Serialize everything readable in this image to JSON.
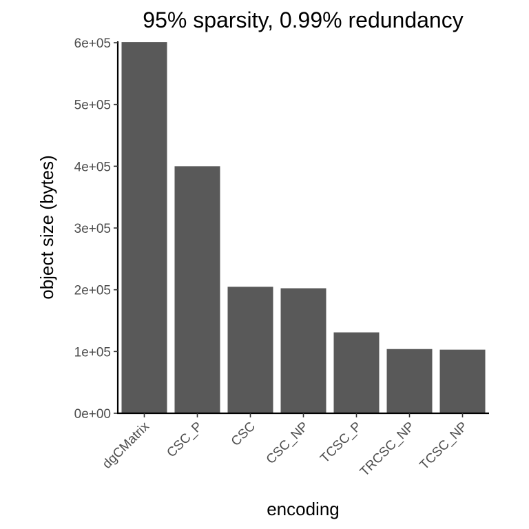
{
  "chart_data": {
    "type": "bar",
    "title": "95% sparsity, 0.99% redundancy",
    "xlabel": "encoding",
    "ylabel": "object size (bytes)",
    "categories": [
      "dgCMatrix",
      "CSC_P",
      "CSC",
      "CSC_NP",
      "TCSC_P",
      "TRCSC_NP",
      "TCSC_NP"
    ],
    "values": [
      601000,
      400000,
      204800,
      202400,
      131000,
      104000,
      103000
    ],
    "ylim": [
      0,
      600000
    ],
    "yticks": [
      0,
      100000,
      200000,
      300000,
      400000,
      500000,
      600000
    ],
    "ytick_labels": [
      "0e+00",
      "1e+05",
      "2e+05",
      "3e+05",
      "4e+05",
      "5e+05",
      "6e+05"
    ],
    "bar_color": "#595959",
    "grid": false,
    "legend": "none"
  }
}
